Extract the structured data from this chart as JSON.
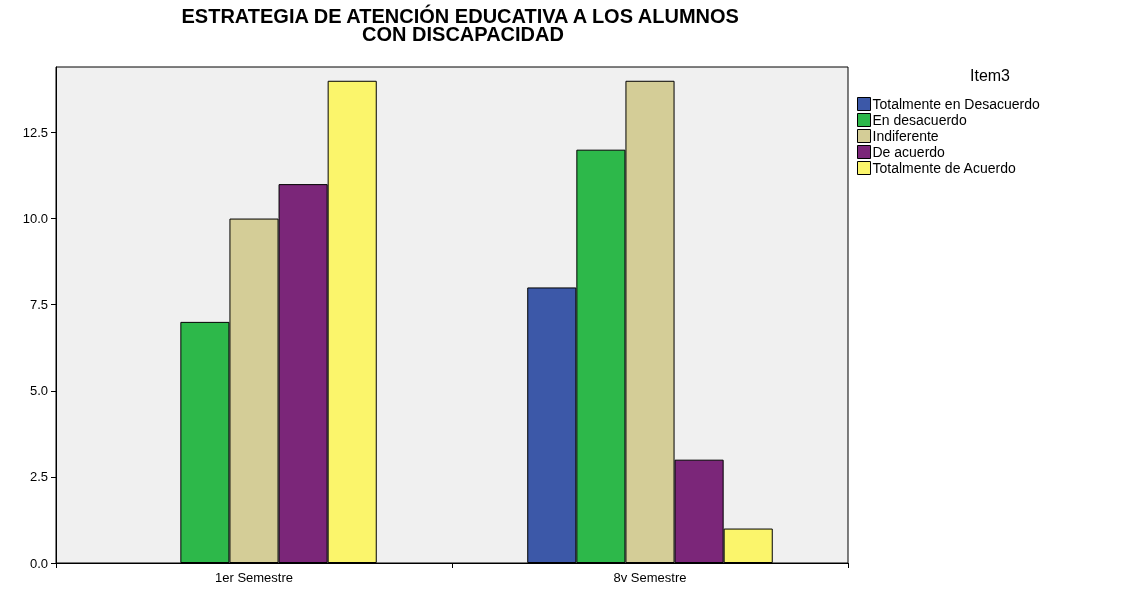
{
  "chart_data": {
    "type": "bar",
    "title": "ESTRATEGIA DE ATENCIÓN EDUCATIVA A LOS ALUMNOS CON DISCAPACIDAD",
    "legend_title": "Item3",
    "categories": [
      "1er Semestre",
      "8v Semestre"
    ],
    "series": [
      {
        "name": "Totalmente en Desacuerdo",
        "color": "#3c58a8",
        "values": [
          null,
          8
        ]
      },
      {
        "name": "En desacuerdo",
        "color": "#2db84a",
        "values": [
          7,
          12
        ]
      },
      {
        "name": "Indiferente",
        "color": "#d4cd97",
        "values": [
          10,
          14
        ]
      },
      {
        "name": "De acuerdo",
        "color": "#7b2679",
        "values": [
          11,
          3
        ]
      },
      {
        "name": "Totalmente de Acuerdo",
        "color": "#fbf56b",
        "values": [
          14,
          1
        ]
      }
    ],
    "ylim": [
      0,
      14.4
    ],
    "yticks": [
      {
        "value": 0,
        "label": "0.0"
      },
      {
        "value": 2.5,
        "label": "2.5"
      },
      {
        "value": 5,
        "label": "5.0"
      },
      {
        "value": 7.5,
        "label": "7.5"
      },
      {
        "value": 10,
        "label": "10.0"
      },
      {
        "value": 12.5,
        "label": "12.5"
      }
    ],
    "grid": false,
    "legend": "top right"
  }
}
